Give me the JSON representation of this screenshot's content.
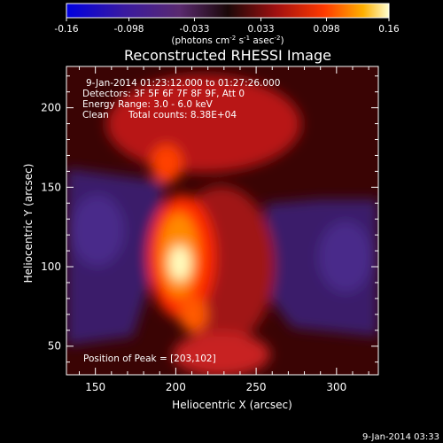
{
  "colorbar": {
    "ticks": [
      "-0.16",
      "-0.098",
      "-0.033",
      "0.033",
      "0.098",
      "0.16"
    ],
    "unit_main": "(photons cm",
    "unit_sup1": "-2",
    "unit_mid": " s",
    "unit_sup2": "-1",
    "unit_end": " asec",
    "unit_sup3": "-2",
    "unit_close": ")",
    "min": -0.16,
    "max": 0.16
  },
  "chart_data": {
    "type": "heatmap",
    "title": "Reconstructed RHESSI Image",
    "xlabel": "Heliocentric X (arcsec)",
    "ylabel": "Heliocentric Y (arcsec)",
    "xlim": [
      132,
      326
    ],
    "ylim": [
      32,
      226
    ],
    "xticks": [
      150,
      200,
      250,
      300
    ],
    "yticks": [
      50,
      100,
      150,
      200
    ],
    "peak": [
      203,
      102
    ],
    "info": [
      "9-Jan-2014 01:23:12.000 to 01:27:26.000",
      "Detectors: 3F 5F 6F 7F 8F 9F, Att 0",
      "Energy Range: 3.0 - 6.0 keV"
    ],
    "clean_label": "Clean",
    "counts_label": "Total counts: 8.38E+04",
    "peak_label": "Position of Peak = [203,102]",
    "colors": {
      "low": "#0000ff",
      "neg": "#5a2a8c",
      "zero": "#1a0a0a",
      "mid": "#c81a1a",
      "high": "#ffa500",
      "top": "#ffffa0"
    }
  },
  "footer_date": "9-Jan-2014 03:33"
}
